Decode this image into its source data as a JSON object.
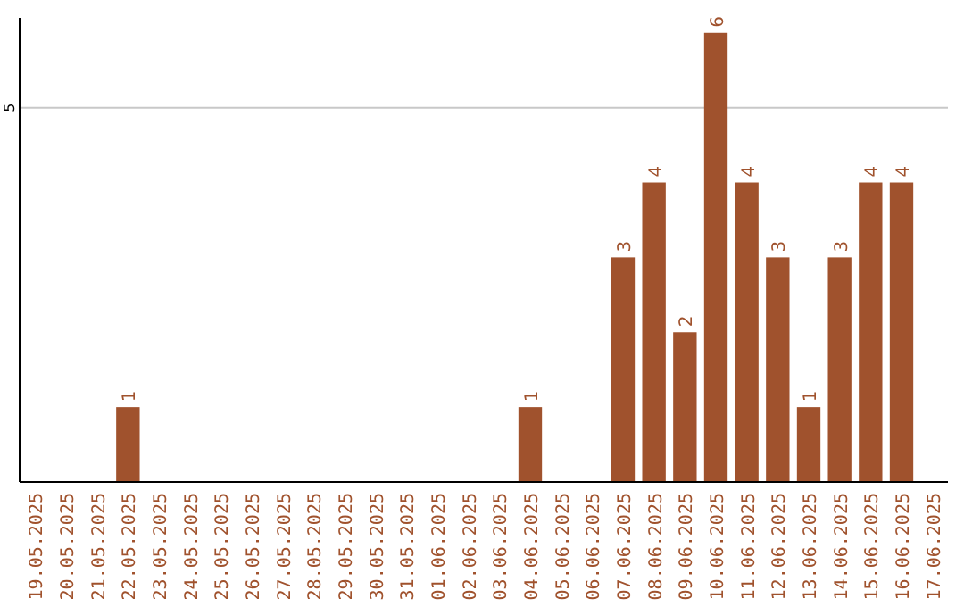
{
  "chart_data": {
    "type": "bar",
    "categories": [
      "19.05.2025",
      "20.05.2025",
      "21.05.2025",
      "22.05.2025",
      "23.05.2025",
      "24.05.2025",
      "25.05.2025",
      "26.05.2025",
      "27.05.2025",
      "28.05.2025",
      "29.05.2025",
      "30.05.2025",
      "31.05.2025",
      "01.06.2025",
      "02.06.2025",
      "03.06.2025",
      "04.06.2025",
      "05.06.2025",
      "06.06.2025",
      "07.06.2025",
      "08.06.2025",
      "09.06.2025",
      "10.06.2025",
      "11.06.2025",
      "12.06.2025",
      "13.06.2025",
      "14.06.2025",
      "15.06.2025",
      "16.06.2025",
      "17.06.2025"
    ],
    "values": [
      null,
      null,
      null,
      1,
      null,
      null,
      null,
      null,
      null,
      null,
      null,
      null,
      null,
      null,
      null,
      null,
      1,
      null,
      null,
      3,
      4,
      2,
      6,
      4,
      3,
      1,
      3,
      4,
      4,
      null
    ],
    "color": "#a0522d",
    "ylim": [
      0,
      6.2
    ],
    "yticks": [
      5
    ],
    "grid": "y",
    "data_labels": true
  }
}
